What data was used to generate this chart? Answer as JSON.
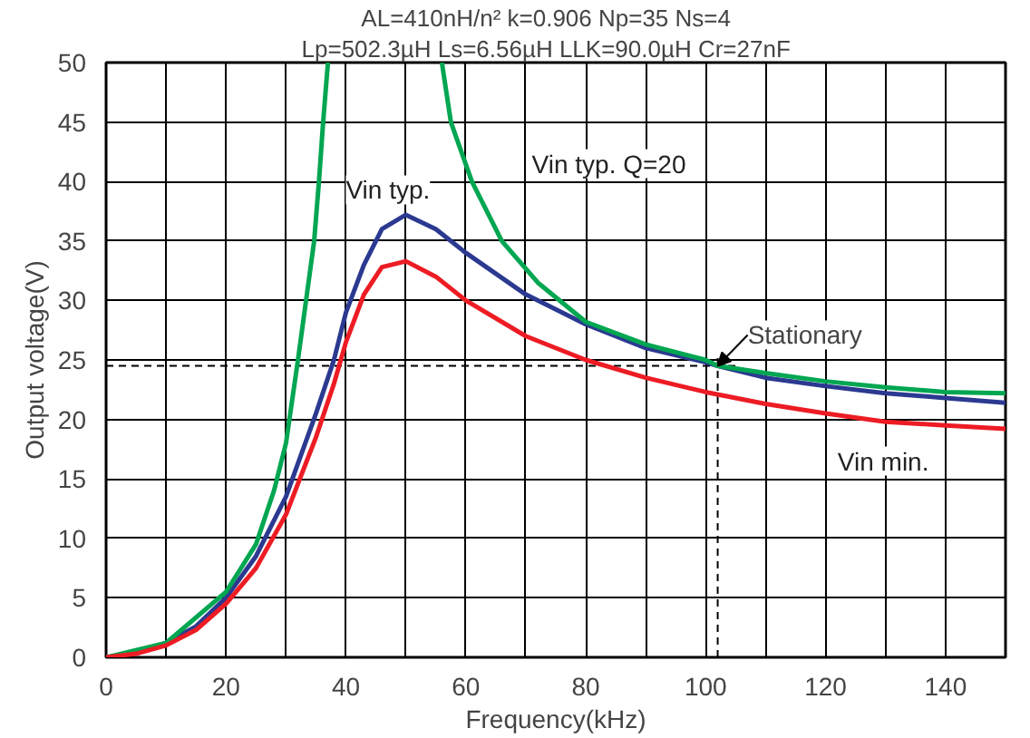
{
  "chart_data": {
    "type": "line",
    "title": "AL=410nH/n²  k=0.906  Np=35  Ns=4",
    "subtitle": "Lp=502.3µH  Ls=6.56µH  LLK=90.0µH  Cr=27nF",
    "xlabel": "Frequency(kHz)",
    "ylabel": "Output voltage(V)",
    "xlim": [
      0,
      150
    ],
    "ylim": [
      0,
      50
    ],
    "xticks": [
      0,
      20,
      40,
      60,
      80,
      100,
      120,
      140
    ],
    "yticks": [
      0,
      5,
      10,
      15,
      20,
      25,
      30,
      35,
      40,
      45,
      50
    ],
    "grid": true,
    "marker": "none",
    "line_style": "solid",
    "series": [
      {
        "name": "Vin typ.",
        "color": "#2b3990",
        "x": [
          0,
          5,
          10,
          15,
          20,
          25,
          30,
          35,
          38,
          40,
          43,
          46,
          50,
          55,
          60,
          70,
          80,
          90,
          100,
          102,
          110,
          120,
          130,
          140,
          150
        ],
        "values": [
          0,
          0.4,
          1.2,
          2.6,
          5,
          8.5,
          13.5,
          20.5,
          25,
          29,
          33,
          36,
          37.2,
          36,
          34,
          30.5,
          28,
          26,
          24.8,
          24.5,
          23.5,
          22.8,
          22.2,
          21.8,
          21.4
        ]
      },
      {
        "name": "Vin typ. Q=20",
        "color": "#00a651",
        "x": [
          0,
          10,
          20,
          25,
          28,
          30,
          32,
          34.7,
          35.5,
          36.2,
          37,
          46,
          56,
          57.5,
          61,
          66,
          72,
          80,
          90,
          100,
          102,
          110,
          120,
          130,
          140,
          150
        ],
        "values": [
          0,
          1.2,
          5.5,
          9.5,
          14,
          18,
          25,
          35,
          40,
          45,
          50,
          null,
          50,
          45,
          40,
          35,
          31.5,
          28.2,
          26.3,
          25,
          24.5,
          23.9,
          23.2,
          22.7,
          22.3,
          22.2
        ]
      },
      {
        "name": "Vin min.",
        "color": "#ed1c24",
        "x": [
          0,
          5,
          10,
          15,
          20,
          25,
          30,
          35,
          38,
          40,
          43,
          46,
          50,
          55,
          60,
          70,
          80,
          90,
          100,
          110,
          120,
          130,
          140,
          150
        ],
        "values": [
          0,
          0.3,
          1,
          2.3,
          4.5,
          7.5,
          12,
          18.5,
          23,
          26.5,
          30.5,
          32.8,
          33.3,
          32,
          30,
          27,
          25,
          23.5,
          22.3,
          21.3,
          20.5,
          19.8,
          19.5,
          19.2
        ]
      }
    ],
    "ref_lines": [
      {
        "axis": "x",
        "value": 102,
        "line_style": "dashed"
      },
      {
        "axis": "y",
        "value": 24.5,
        "line_style": "dashed"
      }
    ],
    "annotations": [
      {
        "text": "Stationary",
        "x": 102,
        "y": 24.5
      }
    ]
  }
}
